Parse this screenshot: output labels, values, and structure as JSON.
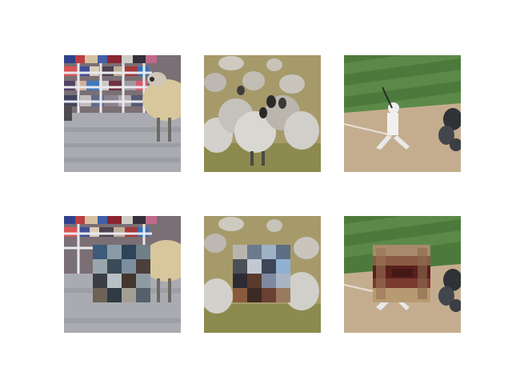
{
  "grid": {
    "rows": 2,
    "columns": 3,
    "panels": [
      {
        "subject": "sheep-at-fence",
        "variant": "original"
      },
      {
        "subject": "sheep-flock",
        "variant": "original"
      },
      {
        "subject": "baseball-batter",
        "variant": "original"
      },
      {
        "subject": "sheep-at-fence",
        "variant": "patched"
      },
      {
        "subject": "sheep-flock",
        "variant": "patched"
      },
      {
        "subject": "baseball-batter",
        "variant": "patched"
      }
    ]
  },
  "colors": {
    "background": "#ffffff",
    "grass": "#4f7a3a",
    "dirt": "#c9b396",
    "wool": "#d8d2c6",
    "sky_crowd": "#6b7ea8"
  }
}
